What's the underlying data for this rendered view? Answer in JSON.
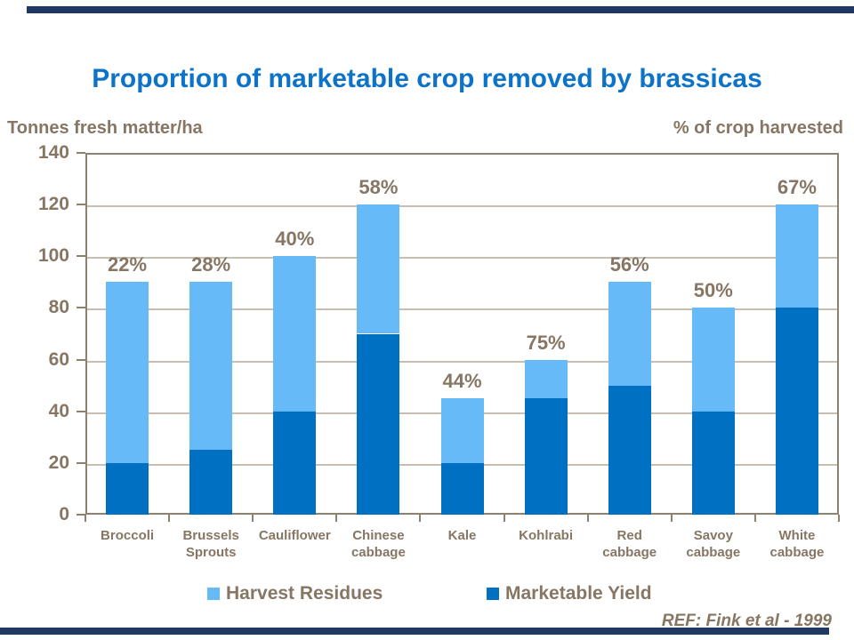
{
  "slide": {
    "title": "Proportion of marketable crop removed by brassicas",
    "unit_left": "Tonnes fresh matter/ha",
    "unit_right": "% of crop harvested",
    "ref": "REF: Fink et al - 1999"
  },
  "chart_data": {
    "type": "bar",
    "stacked": true,
    "title": "Proportion of marketable crop removed by brassicas",
    "xlabel": "",
    "ylabel": "Tonnes fresh matter/ha",
    "ylabel_right": "% of crop harvested",
    "ylim": [
      0,
      140
    ],
    "yticks": [
      0,
      20,
      40,
      60,
      80,
      100,
      120,
      140
    ],
    "grid": true,
    "legend_position": "bottom",
    "categories": [
      "Broccoli",
      "Brussels\nSprouts",
      "Cauliflower",
      "Chinese\ncabbage",
      "Kale",
      "Kohlrabi",
      "Red\ncabbage",
      "Savoy\ncabbage",
      "White\ncabbage"
    ],
    "series": [
      {
        "name": "Marketable Yield",
        "color": "#0071C2",
        "values": [
          20,
          25,
          40,
          70,
          20,
          45,
          50,
          40,
          80
        ]
      },
      {
        "name": "Harvest Residues",
        "color": "#66BAF7",
        "values": [
          70,
          65,
          60,
          50,
          25,
          15,
          40,
          40,
          40
        ]
      }
    ],
    "totals": [
      90,
      90,
      100,
      120,
      45,
      60,
      90,
      80,
      120
    ],
    "bar_labels": [
      "22%",
      "28%",
      "40%",
      "58%",
      "44%",
      "75%",
      "56%",
      "50%",
      "67%"
    ]
  },
  "legend": {
    "items": [
      {
        "label": "Harvest Residues",
        "color": "#66BAF7"
      },
      {
        "label": "Marketable Yield",
        "color": "#0071C2"
      }
    ]
  },
  "colors": {
    "title": "#0D73C9",
    "text": "#867663",
    "grid": "#C8BEB2",
    "axis": "#8F8170",
    "accent_bar": "#1F3864",
    "bar_dark": "#0071C2",
    "bar_light": "#66BAF7"
  }
}
